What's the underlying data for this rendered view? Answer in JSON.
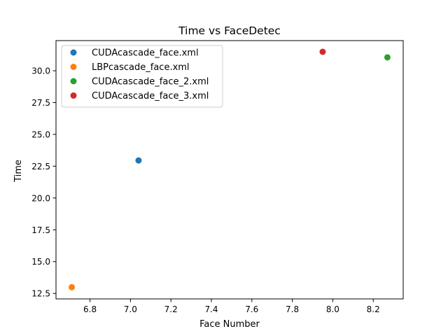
{
  "chart_data": {
    "type": "scatter",
    "title": "Time vs FaceDetec",
    "xlabel": "Face Number",
    "ylabel": "Time",
    "xlim": [
      6.632,
      8.348
    ],
    "ylim": [
      12.07,
      32.37
    ],
    "xticks": [
      6.8,
      7.0,
      7.2,
      7.4,
      7.6,
      7.8,
      8.0,
      8.2
    ],
    "xtick_labels": [
      "6.8",
      "7.0",
      "7.2",
      "7.4",
      "7.6",
      "7.8",
      "8.0",
      "8.2"
    ],
    "yticks": [
      12.5,
      15.0,
      17.5,
      20.0,
      22.5,
      25.0,
      27.5,
      30.0
    ],
    "ytick_labels": [
      "12.5",
      "15.0",
      "17.5",
      "20.0",
      "22.5",
      "25.0",
      "27.5",
      "30.0"
    ],
    "grid": false,
    "legend_position": "top-left",
    "series": [
      {
        "name": "CUDAcascade_face.xml",
        "color": "#1f77b4",
        "x": [
          7.04
        ],
        "y": [
          22.95
        ]
      },
      {
        "name": "LBPcascade_face.xml",
        "color": "#ff7f0e",
        "x": [
          6.71
        ],
        "y": [
          12.99
        ]
      },
      {
        "name": "CUDAcascade_face_2.xml",
        "color": "#2ca02c",
        "x": [
          8.27
        ],
        "y": [
          31.05
        ]
      },
      {
        "name": "CUDAcascade_face_3.xml",
        "color": "#d62728",
        "x": [
          7.95
        ],
        "y": [
          31.49
        ]
      }
    ]
  }
}
